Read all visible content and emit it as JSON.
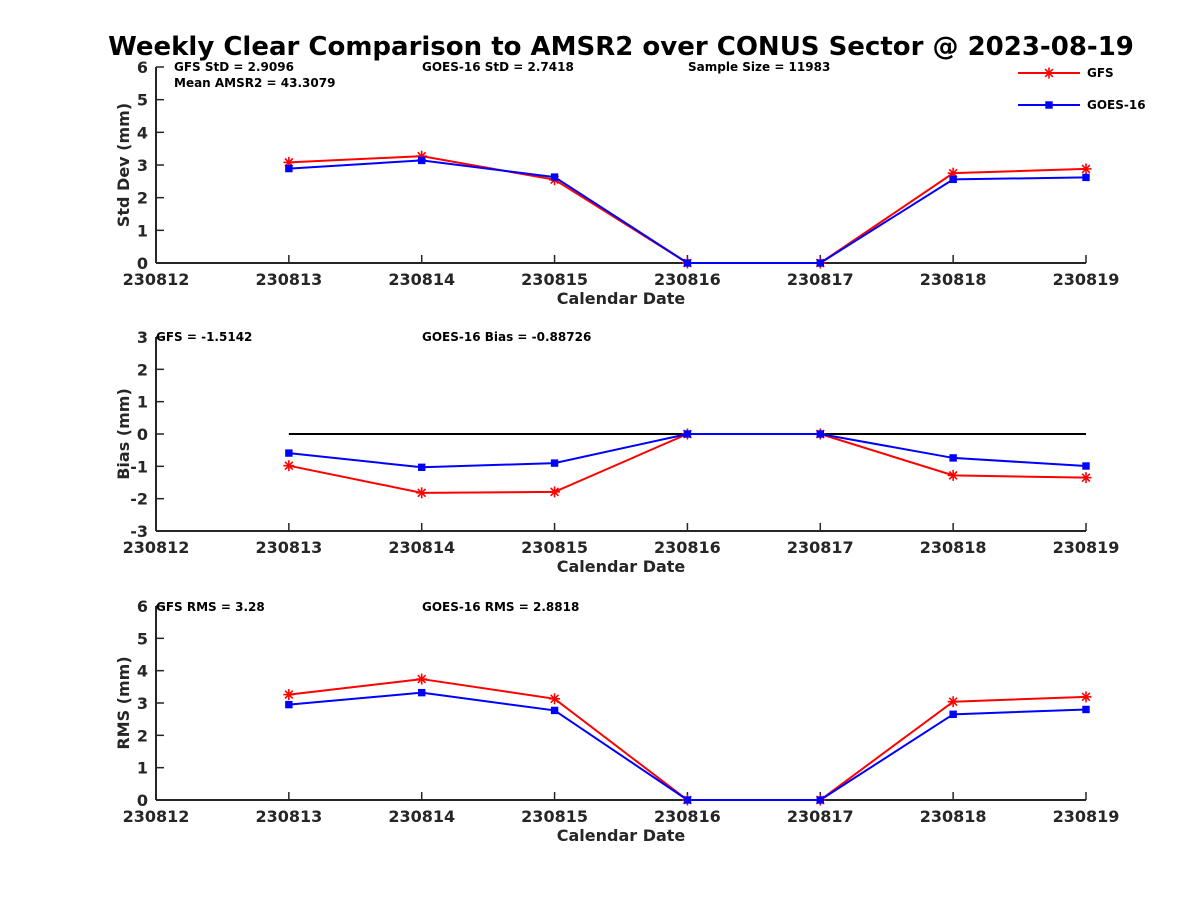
{
  "title": "Weekly Clear Comparison to AMSR2 over CONUS Sector @ 2023-08-19",
  "legend": {
    "position": "top-right",
    "entries": [
      {
        "label": "GFS",
        "color": "#ff0000",
        "marker": "asterisk"
      },
      {
        "label": "GOES-16",
        "color": "#0000ff",
        "marker": "square"
      }
    ]
  },
  "chart_data": [
    {
      "type": "line",
      "xlabel": "Calendar Date",
      "ylabel": "Std Dev (mm)",
      "x": [
        "230812",
        "230813",
        "230814",
        "230815",
        "230816",
        "230817",
        "230818",
        "230819"
      ],
      "ylim": [
        0,
        6
      ],
      "yticks": [
        "0",
        "1",
        "2",
        "3",
        "4",
        "5",
        "6"
      ],
      "grid": false,
      "annotations": [
        "GFS StD = 2.9096",
        "GOES-16 StD = 2.7418",
        "Sample Size = 11983",
        "Mean AMSR2 = 43.3079"
      ],
      "series": [
        {
          "name": "GFS",
          "color": "#ff0000",
          "marker": "asterisk",
          "x": [
            "230813",
            "230814",
            "230815",
            "230816",
            "230817",
            "230818",
            "230819"
          ],
          "values": [
            3.08,
            3.27,
            2.55,
            0,
            0,
            2.75,
            2.88
          ]
        },
        {
          "name": "GOES-16",
          "color": "#0000ff",
          "marker": "square",
          "x": [
            "230813",
            "230814",
            "230815",
            "230816",
            "230817",
            "230818",
            "230819"
          ],
          "values": [
            2.89,
            3.14,
            2.63,
            0,
            0,
            2.56,
            2.62
          ]
        }
      ]
    },
    {
      "type": "line",
      "xlabel": "Calendar Date",
      "ylabel": "Bias (mm)",
      "x": [
        "230812",
        "230813",
        "230814",
        "230815",
        "230816",
        "230817",
        "230818",
        "230819"
      ],
      "ylim": [
        -3,
        3
      ],
      "yticks": [
        "-3",
        "-2",
        "-1",
        "0",
        "1",
        "2",
        "3"
      ],
      "grid": false,
      "zero_line": true,
      "annotations": [
        "GFS = -1.5142",
        "GOES-16 Bias  = -0.88726"
      ],
      "series": [
        {
          "name": "GFS",
          "color": "#ff0000",
          "marker": "asterisk",
          "x": [
            "230813",
            "230814",
            "230815",
            "230816",
            "230817",
            "230818",
            "230819"
          ],
          "values": [
            -0.98,
            -1.82,
            -1.79,
            0,
            0,
            -1.28,
            -1.35
          ]
        },
        {
          "name": "GOES-16",
          "color": "#0000ff",
          "marker": "square",
          "x": [
            "230813",
            "230814",
            "230815",
            "230816",
            "230817",
            "230818",
            "230819"
          ],
          "values": [
            -0.59,
            -1.03,
            -0.9,
            0,
            0,
            -0.74,
            -0.99
          ]
        }
      ]
    },
    {
      "type": "line",
      "xlabel": "Calendar Date",
      "ylabel": "RMS (mm)",
      "x": [
        "230812",
        "230813",
        "230814",
        "230815",
        "230816",
        "230817",
        "230818",
        "230819"
      ],
      "ylim": [
        0,
        6
      ],
      "yticks": [
        "0",
        "1",
        "2",
        "3",
        "4",
        "5",
        "6"
      ],
      "grid": false,
      "annotations": [
        "GFS RMS = 3.28",
        "GOES-16 RMS = 2.8818"
      ],
      "series": [
        {
          "name": "GFS",
          "color": "#ff0000",
          "marker": "asterisk",
          "x": [
            "230813",
            "230814",
            "230815",
            "230816",
            "230817",
            "230818",
            "230819"
          ],
          "values": [
            3.26,
            3.74,
            3.13,
            0,
            0,
            3.04,
            3.19
          ]
        },
        {
          "name": "GOES-16",
          "color": "#0000ff",
          "marker": "square",
          "x": [
            "230813",
            "230814",
            "230815",
            "230816",
            "230817",
            "230818",
            "230819"
          ],
          "values": [
            2.95,
            3.32,
            2.77,
            0,
            0,
            2.65,
            2.8
          ]
        }
      ]
    }
  ]
}
